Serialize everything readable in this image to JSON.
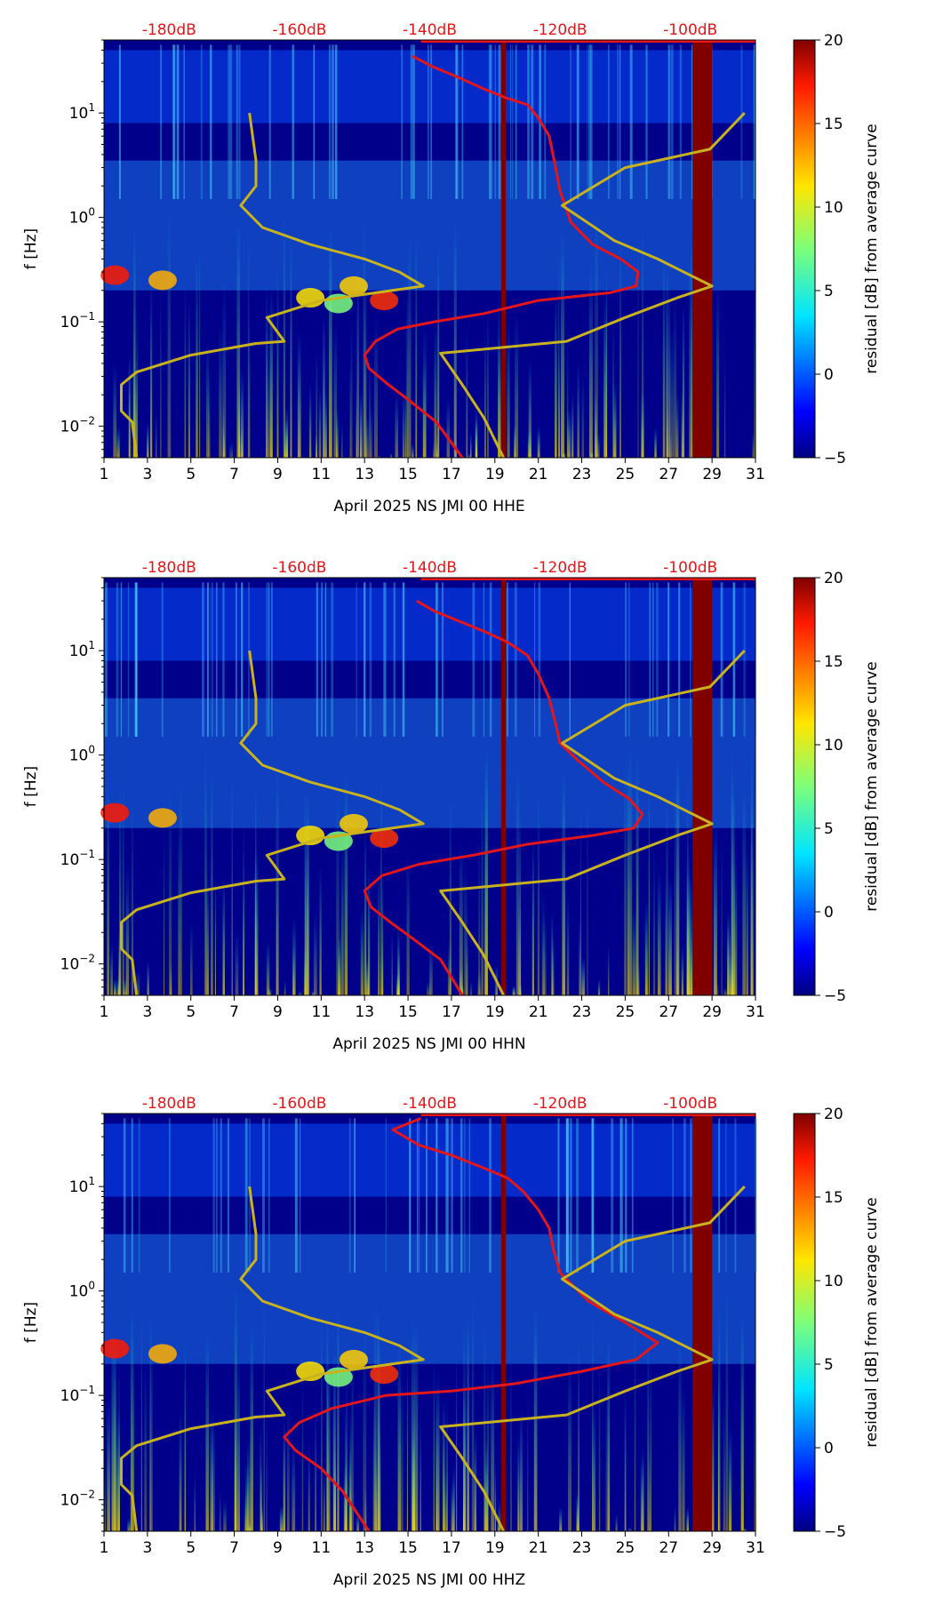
{
  "chart_data": [
    {
      "type": "heatmap",
      "xlabel": "April 2025 NS JMI 00 HHE",
      "ylabel": "f [Hz]",
      "x_ticks": [
        "1",
        "3",
        "5",
        "7",
        "9",
        "11",
        "13",
        "15",
        "17",
        "19",
        "21",
        "23",
        "25",
        "27",
        "29",
        "31"
      ],
      "xlim": [
        1,
        31
      ],
      "ylim": [
        0.005,
        50
      ],
      "y_scale": "log",
      "y_ticks": [
        {
          "label_base": "10",
          "label_exp": "1",
          "value": 10
        },
        {
          "label_base": "10",
          "label_exp": "0",
          "value": 1
        },
        {
          "label_base": "10",
          "label_exp": "−1",
          "value": 0.1
        },
        {
          "label_base": "10",
          "label_exp": "−2",
          "value": 0.01
        }
      ],
      "top_axis_labels": [
        "-180dB",
        "-160dB",
        "-140dB",
        "-120dB",
        "-100dB"
      ],
      "top_axis_positions": [
        4,
        10,
        16,
        22,
        28
      ],
      "colorbar": {
        "label": "residual [dB] from average curve",
        "ticks": [
          "20",
          "15",
          "10",
          "5",
          "0",
          "−5"
        ],
        "range": [
          -5,
          20
        ],
        "colormap": "jet"
      },
      "masked_day_columns": [
        [
          19.3,
          19.5
        ],
        [
          28.1,
          29.0
        ]
      ],
      "series": [
        {
          "color": "#e4161a",
          "points": [
            [
              15.2,
              35
            ],
            [
              16.1,
              28
            ],
            [
              17.3,
              22
            ],
            [
              18.5,
              17
            ],
            [
              19.5,
              14
            ],
            [
              20.5,
              12
            ],
            [
              21,
              9
            ],
            [
              21.5,
              6
            ],
            [
              21.8,
              3
            ],
            [
              22,
              1.8
            ],
            [
              22.5,
              0.9
            ],
            [
              23.5,
              0.55
            ],
            [
              24.8,
              0.4
            ],
            [
              25.6,
              0.3
            ],
            [
              25.5,
              0.22
            ],
            [
              24.3,
              0.19
            ],
            [
              21,
              0.16
            ],
            [
              18.5,
              0.12
            ],
            [
              16.2,
              0.1
            ],
            [
              14.5,
              0.085
            ],
            [
              13.5,
              0.065
            ],
            [
              13,
              0.048
            ],
            [
              13.2,
              0.036
            ],
            [
              14,
              0.026
            ],
            [
              15,
              0.018
            ],
            [
              16.3,
              0.011
            ],
            [
              17.5,
              0.005
            ]
          ]
        },
        {
          "color": "#c8b21e",
          "points": [
            [
              7.7,
              10
            ],
            [
              8,
              3.5
            ],
            [
              8,
              2
            ],
            [
              7.3,
              1.3
            ],
            [
              8.3,
              0.8
            ],
            [
              10.5,
              0.55
            ],
            [
              13,
              0.4
            ],
            [
              14.6,
              0.3
            ],
            [
              15.7,
              0.22
            ],
            [
              11,
              0.16
            ],
            [
              8.5,
              0.11
            ],
            [
              9.3,
              0.065
            ],
            [
              8,
              0.062
            ],
            [
              5,
              0.048
            ],
            [
              2.5,
              0.033
            ],
            [
              1.8,
              0.025
            ],
            [
              1.8,
              0.014
            ],
            [
              2.3,
              0.011
            ],
            [
              2.5,
              0.005
            ]
          ]
        },
        {
          "color": "#c8b21e",
          "points": [
            [
              30.5,
              10
            ],
            [
              28.9,
              4.5
            ],
            [
              25,
              3
            ],
            [
              22.1,
              1.3
            ],
            [
              24.5,
              0.6
            ],
            [
              26.5,
              0.4
            ],
            [
              29,
              0.22
            ],
            [
              27.4,
              0.17
            ],
            [
              25,
              0.11
            ],
            [
              22.3,
              0.065
            ],
            [
              16.5,
              0.05
            ],
            [
              17.5,
              0.025
            ],
            [
              18.5,
              0.012
            ],
            [
              19.4,
              0.005
            ]
          ]
        }
      ]
    },
    {
      "type": "heatmap",
      "xlabel": "April 2025 NS JMI 00 HHN",
      "ylabel": "f [Hz]",
      "x_ticks": [
        "1",
        "3",
        "5",
        "7",
        "9",
        "11",
        "13",
        "15",
        "17",
        "19",
        "21",
        "23",
        "25",
        "27",
        "29",
        "31"
      ],
      "xlim": [
        1,
        31
      ],
      "ylim": [
        0.005,
        50
      ],
      "y_scale": "log",
      "y_ticks": [
        {
          "label_base": "10",
          "label_exp": "1",
          "value": 10
        },
        {
          "label_base": "10",
          "label_exp": "0",
          "value": 1
        },
        {
          "label_base": "10",
          "label_exp": "−1",
          "value": 0.1
        },
        {
          "label_base": "10",
          "label_exp": "−2",
          "value": 0.01
        }
      ],
      "top_axis_labels": [
        "-180dB",
        "-160dB",
        "-140dB",
        "-120dB",
        "-100dB"
      ],
      "top_axis_positions": [
        4,
        10,
        16,
        22,
        28
      ],
      "colorbar": {
        "label": "residual [dB] from average curve",
        "ticks": [
          "20",
          "15",
          "10",
          "5",
          "0",
          "−5"
        ],
        "range": [
          -5,
          20
        ],
        "colormap": "jet"
      },
      "masked_day_columns": [
        [
          19.3,
          19.5
        ],
        [
          28.1,
          29.0
        ]
      ],
      "series": [
        {
          "color": "#e4161a",
          "points": [
            [
              15.4,
              30
            ],
            [
              16.2,
              24
            ],
            [
              17.4,
              19
            ],
            [
              18.6,
              15
            ],
            [
              19.6,
              12
            ],
            [
              20.5,
              9
            ],
            [
              21,
              6
            ],
            [
              21.5,
              3.5
            ],
            [
              21.8,
              2
            ],
            [
              22,
              1.3
            ],
            [
              22.8,
              0.9
            ],
            [
              24,
              0.55
            ],
            [
              25.2,
              0.38
            ],
            [
              25.8,
              0.27
            ],
            [
              25.4,
              0.2
            ],
            [
              23.5,
              0.17
            ],
            [
              20.5,
              0.14
            ],
            [
              18,
              0.11
            ],
            [
              15.5,
              0.09
            ],
            [
              13.8,
              0.07
            ],
            [
              13,
              0.05
            ],
            [
              13.3,
              0.035
            ],
            [
              14.2,
              0.025
            ],
            [
              15.3,
              0.017
            ],
            [
              16.5,
              0.011
            ],
            [
              17.5,
              0.005
            ]
          ]
        },
        {
          "color": "#c8b21e",
          "points": [
            [
              7.7,
              10
            ],
            [
              8,
              3.5
            ],
            [
              8,
              2
            ],
            [
              7.3,
              1.3
            ],
            [
              8.3,
              0.8
            ],
            [
              10.5,
              0.55
            ],
            [
              13,
              0.4
            ],
            [
              14.6,
              0.3
            ],
            [
              15.7,
              0.22
            ],
            [
              11,
              0.16
            ],
            [
              8.5,
              0.11
            ],
            [
              9.3,
              0.065
            ],
            [
              8,
              0.062
            ],
            [
              5,
              0.048
            ],
            [
              2.5,
              0.033
            ],
            [
              1.8,
              0.025
            ],
            [
              1.8,
              0.014
            ],
            [
              2.3,
              0.011
            ],
            [
              2.5,
              0.005
            ]
          ]
        },
        {
          "color": "#c8b21e",
          "points": [
            [
              30.5,
              10
            ],
            [
              28.9,
              4.5
            ],
            [
              25,
              3
            ],
            [
              22.1,
              1.3
            ],
            [
              24.5,
              0.6
            ],
            [
              26.5,
              0.4
            ],
            [
              29,
              0.22
            ],
            [
              27.4,
              0.17
            ],
            [
              25,
              0.11
            ],
            [
              22.3,
              0.065
            ],
            [
              16.5,
              0.05
            ],
            [
              17.5,
              0.025
            ],
            [
              18.5,
              0.012
            ],
            [
              19.4,
              0.005
            ]
          ]
        }
      ]
    },
    {
      "type": "heatmap",
      "xlabel": "April 2025 NS JMI 00 HHZ",
      "ylabel": "f [Hz]",
      "x_ticks": [
        "1",
        "3",
        "5",
        "7",
        "9",
        "11",
        "13",
        "15",
        "17",
        "19",
        "21",
        "23",
        "25",
        "27",
        "29",
        "31"
      ],
      "xlim": [
        1,
        31
      ],
      "ylim": [
        0.005,
        50
      ],
      "y_scale": "log",
      "y_ticks": [
        {
          "label_base": "10",
          "label_exp": "1",
          "value": 10
        },
        {
          "label_base": "10",
          "label_exp": "0",
          "value": 1
        },
        {
          "label_base": "10",
          "label_exp": "−1",
          "value": 0.1
        },
        {
          "label_base": "10",
          "label_exp": "−2",
          "value": 0.01
        }
      ],
      "top_axis_labels": [
        "-180dB",
        "-160dB",
        "-140dB",
        "-120dB",
        "-100dB"
      ],
      "top_axis_positions": [
        4,
        10,
        16,
        22,
        28
      ],
      "colorbar": {
        "label": "residual [dB] from average curve",
        "ticks": [
          "20",
          "15",
          "10",
          "5",
          "0",
          "−5"
        ],
        "range": [
          -5,
          20
        ],
        "colormap": "jet"
      },
      "masked_day_columns": [
        [
          19.3,
          19.5
        ],
        [
          28.1,
          29.0
        ]
      ],
      "series": [
        {
          "color": "#e4161a",
          "points": [
            [
              15.6,
              45
            ],
            [
              14.3,
              35
            ],
            [
              15.5,
              25
            ],
            [
              17,
              20
            ],
            [
              18.5,
              15
            ],
            [
              19.6,
              12
            ],
            [
              20.3,
              9
            ],
            [
              21,
              6
            ],
            [
              21.5,
              4
            ],
            [
              21.7,
              2.5
            ],
            [
              22,
              1.5
            ],
            [
              23.3,
              0.8
            ],
            [
              25,
              0.5
            ],
            [
              26.5,
              0.32
            ],
            [
              25.5,
              0.22
            ],
            [
              23,
              0.17
            ],
            [
              20,
              0.13
            ],
            [
              17,
              0.11
            ],
            [
              14,
              0.1
            ],
            [
              11.5,
              0.075
            ],
            [
              10,
              0.055
            ],
            [
              9.3,
              0.04
            ],
            [
              9.8,
              0.03
            ],
            [
              11,
              0.02
            ],
            [
              12,
              0.012
            ],
            [
              13.2,
              0.005
            ]
          ]
        },
        {
          "color": "#c8b21e",
          "points": [
            [
              7.7,
              10
            ],
            [
              8,
              3.5
            ],
            [
              8,
              2
            ],
            [
              7.3,
              1.3
            ],
            [
              8.3,
              0.8
            ],
            [
              10.5,
              0.55
            ],
            [
              13,
              0.4
            ],
            [
              14.6,
              0.3
            ],
            [
              15.7,
              0.22
            ],
            [
              11,
              0.16
            ],
            [
              8.5,
              0.11
            ],
            [
              9.3,
              0.065
            ],
            [
              8,
              0.062
            ],
            [
              5,
              0.048
            ],
            [
              2.5,
              0.033
            ],
            [
              1.8,
              0.025
            ],
            [
              1.8,
              0.014
            ],
            [
              2.3,
              0.011
            ],
            [
              2.5,
              0.005
            ]
          ]
        },
        {
          "color": "#c8b21e",
          "points": [
            [
              30.5,
              10
            ],
            [
              28.9,
              4.5
            ],
            [
              25,
              3
            ],
            [
              22.1,
              1.3
            ],
            [
              24.5,
              0.6
            ],
            [
              26.5,
              0.4
            ],
            [
              29,
              0.22
            ],
            [
              27.4,
              0.17
            ],
            [
              25,
              0.11
            ],
            [
              22.3,
              0.065
            ],
            [
              16.5,
              0.05
            ],
            [
              17.5,
              0.025
            ],
            [
              18.5,
              0.012
            ],
            [
              19.4,
              0.005
            ]
          ]
        }
      ]
    }
  ],
  "style": {
    "top_label_color": "#e4161a",
    "mask_color": "#800000",
    "background_color": "#00008b",
    "band_color": "#1f8fff"
  }
}
